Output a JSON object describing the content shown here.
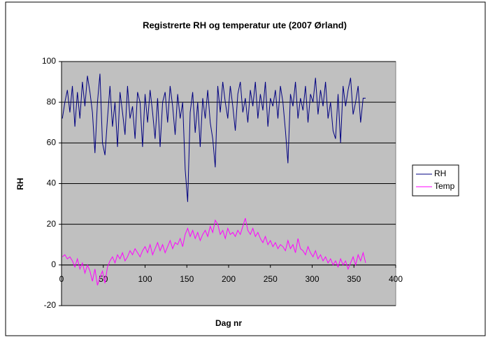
{
  "chart_data": {
    "type": "line",
    "title": "Registrerte RH og temperatur ute (2007 Ørland)",
    "xlabel": "Dag nr",
    "ylabel": "RH",
    "x": [
      1,
      4,
      7,
      10,
      13,
      16,
      19,
      22,
      25,
      28,
      31,
      34,
      37,
      40,
      43,
      46,
      49,
      52,
      55,
      58,
      61,
      64,
      67,
      70,
      73,
      76,
      79,
      82,
      85,
      88,
      91,
      94,
      97,
      100,
      103,
      106,
      109,
      112,
      115,
      118,
      121,
      124,
      127,
      130,
      133,
      136,
      139,
      142,
      145,
      148,
      151,
      154,
      157,
      160,
      163,
      166,
      169,
      172,
      175,
      178,
      181,
      184,
      187,
      190,
      193,
      196,
      199,
      202,
      205,
      208,
      211,
      214,
      217,
      220,
      223,
      226,
      229,
      232,
      235,
      238,
      241,
      244,
      247,
      250,
      253,
      256,
      259,
      262,
      265,
      268,
      271,
      274,
      277,
      280,
      283,
      286,
      289,
      292,
      295,
      298,
      301,
      304,
      307,
      310,
      313,
      316,
      319,
      322,
      325,
      328,
      331,
      334,
      337,
      340,
      343,
      346,
      349,
      352,
      355,
      358,
      361,
      364
    ],
    "series": [
      {
        "name": "RH",
        "color": "#000080",
        "values": [
          72,
          80,
          86,
          75,
          88,
          68,
          85,
          72,
          90,
          78,
          93,
          85,
          75,
          55,
          80,
          94,
          60,
          54,
          72,
          88,
          68,
          80,
          58,
          85,
          75,
          64,
          88,
          72,
          78,
          62,
          85,
          80,
          58,
          84,
          70,
          86,
          75,
          62,
          82,
          58,
          80,
          85,
          70,
          88,
          78,
          64,
          84,
          72,
          80,
          47,
          31,
          75,
          85,
          65,
          80,
          58,
          82,
          72,
          86,
          70,
          62,
          48,
          88,
          75,
          90,
          80,
          72,
          88,
          78,
          66,
          84,
          90,
          75,
          82,
          70,
          86,
          78,
          90,
          72,
          84,
          76,
          90,
          68,
          82,
          78,
          86,
          72,
          88,
          80,
          66,
          50,
          84,
          78,
          90,
          72,
          82,
          76,
          88,
          70,
          84,
          80,
          92,
          74,
          86,
          78,
          90,
          72,
          80,
          66,
          62,
          84,
          60,
          88,
          78,
          86,
          92,
          74,
          80,
          88,
          70,
          82,
          82
        ]
      },
      {
        "name": "Temp",
        "color": "#ff00ff",
        "values": [
          4,
          5,
          3,
          4,
          2,
          -1,
          3,
          -2,
          1,
          -4,
          0,
          -3,
          -8,
          -2,
          -10,
          -6,
          -3,
          -9,
          -1,
          2,
          4,
          1,
          5,
          3,
          6,
          2,
          4,
          7,
          5,
          8,
          6,
          4,
          7,
          9,
          6,
          10,
          5,
          8,
          11,
          7,
          10,
          6,
          9,
          12,
          8,
          11,
          10,
          13,
          9,
          15,
          18,
          14,
          17,
          13,
          16,
          12,
          15,
          17,
          14,
          19,
          16,
          22,
          20,
          15,
          17,
          13,
          18,
          15,
          16,
          14,
          17,
          15,
          19,
          23,
          17,
          15,
          18,
          14,
          16,
          13,
          11,
          14,
          10,
          12,
          9,
          11,
          8,
          10,
          9,
          7,
          12,
          8,
          10,
          6,
          13,
          8,
          7,
          5,
          9,
          6,
          4,
          7,
          3,
          5,
          2,
          4,
          1,
          3,
          0,
          2,
          -1,
          3,
          0,
          2,
          -2,
          1,
          4,
          0,
          5,
          2,
          6,
          1
        ]
      }
    ],
    "xlim": [
      0,
      400
    ],
    "xticks": [
      0,
      50,
      100,
      150,
      200,
      250,
      300,
      350,
      400
    ],
    "ylim": [
      -20,
      100
    ],
    "yticks": [
      -20,
      0,
      20,
      40,
      60,
      80,
      100
    ],
    "grid": true,
    "legend": "right"
  }
}
